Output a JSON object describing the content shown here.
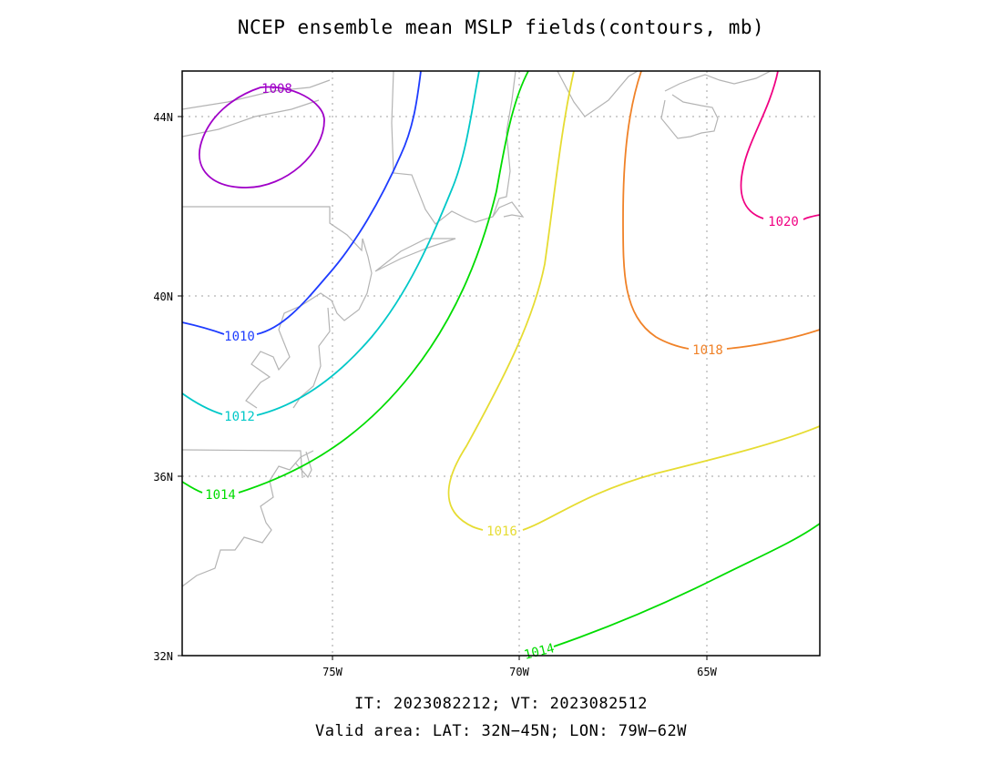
{
  "title": "NCEP ensemble mean MSLP fields(contours, mb)",
  "footer": {
    "line1": "IT: 2023082212; VT: 2023082512",
    "line2": "Valid area: LAT: 32N−45N; LON: 79W−62W"
  },
  "map": {
    "lon_range": [
      -79,
      -62
    ],
    "lat_range": [
      32,
      45
    ],
    "grid": true,
    "lat_ticks": [
      {
        "value": 32,
        "label": "32N"
      },
      {
        "value": 36,
        "label": "36N"
      },
      {
        "value": 40,
        "label": "40N"
      },
      {
        "value": 44,
        "label": "44N"
      }
    ],
    "lon_ticks": [
      {
        "value": -75,
        "label": "75W"
      },
      {
        "value": -70,
        "label": "70W"
      },
      {
        "value": -65,
        "label": "65W"
      }
    ],
    "colors": {
      "coastline": "#b4b4b4",
      "grid": "#a0a0a0",
      "c1008": "#a000c8",
      "c1010": "#1e3cff",
      "c1012": "#00c8c8",
      "c1014": "#00dc00",
      "c1016": "#e6dc32",
      "c1018": "#f08228",
      "c1020": "#f00082"
    },
    "contours": [
      {
        "level": 1008,
        "label": "1008",
        "color": "#a000c8"
      },
      {
        "level": 1010,
        "label": "1010",
        "color": "#1e3cff"
      },
      {
        "level": 1012,
        "label": "1012",
        "color": "#00c8c8"
      },
      {
        "level": 1014,
        "label": "1014",
        "color": "#00dc00"
      },
      {
        "level": 1016,
        "label": "1016",
        "color": "#e6dc32"
      },
      {
        "level": 1018,
        "label": "1018",
        "color": "#f08228"
      },
      {
        "level": 1020,
        "label": "1020",
        "color": "#f00082"
      }
    ]
  }
}
